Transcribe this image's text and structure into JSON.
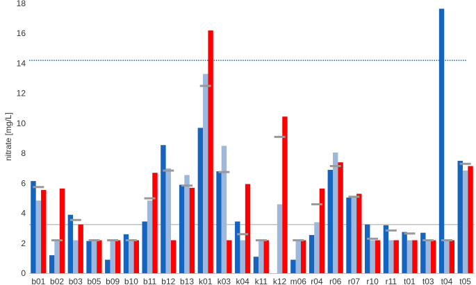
{
  "chart_data": {
    "type": "bar",
    "title": "",
    "xlabel": "",
    "ylabel": "nitrate [mg/L]",
    "ylim": [
      0,
      18
    ],
    "yticks": [
      0,
      2,
      4,
      6,
      8,
      10,
      12,
      14,
      16,
      18
    ],
    "grid": false,
    "categories": [
      "b01",
      "b02",
      "b03",
      "b05",
      "b09",
      "b10",
      "b11",
      "b12",
      "b13",
      "k01",
      "k03",
      "k04",
      "k11",
      "k12",
      "m06",
      "r04",
      "r06",
      "r07",
      "r10",
      "r11",
      "t01",
      "t03",
      "t04",
      "t05"
    ],
    "series": [
      {
        "color": "#1565c0",
        "values": [
          6.15,
          1.2,
          3.9,
          2.15,
          0.9,
          2.6,
          3.45,
          8.55,
          5.9,
          9.7,
          6.8,
          3.45,
          1.1,
          null,
          0.9,
          2.55,
          6.9,
          5.05,
          3.25,
          3.2,
          2.75,
          2.7,
          17.65,
          7.5
        ]
      },
      {
        "color": "#9db8dd",
        "values": [
          4.85,
          2.2,
          2.2,
          2.2,
          2.2,
          2.2,
          4.85,
          7.0,
          6.55,
          13.3,
          8.5,
          2.2,
          2.2,
          4.6,
          2.2,
          3.4,
          8.05,
          5.05,
          2.2,
          2.2,
          2.2,
          2.2,
          2.2,
          6.85
        ]
      },
      {
        "color": "#ff0000",
        "values": [
          5.55,
          5.65,
          3.25,
          2.2,
          2.2,
          2.2,
          6.7,
          2.2,
          5.7,
          16.2,
          2.2,
          5.95,
          2.2,
          10.45,
          2.2,
          5.65,
          7.4,
          5.3,
          2.2,
          2.2,
          2.2,
          2.2,
          2.2,
          7.15
        ]
      }
    ],
    "markers": {
      "color": "#999999",
      "values": [
        5.75,
        2.2,
        3.55,
        2.2,
        2.2,
        2.2,
        5.0,
        6.85,
        5.85,
        12.5,
        6.75,
        2.6,
        2.2,
        9.1,
        2.2,
        4.6,
        7.15,
        5.1,
        2.3,
        2.85,
        2.65,
        2.2,
        2.2,
        7.3
      ]
    },
    "reference_lines": [
      {
        "value": 14.2,
        "style": "dotted",
        "color": "#1e6fbf"
      },
      {
        "value": 3.25,
        "style": "solid",
        "color": "#bbbbbb"
      }
    ]
  }
}
